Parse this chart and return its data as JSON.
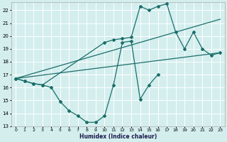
{
  "xlabel": "Humidex (Indice chaleur)",
  "xlim": [
    -0.5,
    23.5
  ],
  "ylim": [
    13,
    22.6
  ],
  "yticks": [
    13,
    14,
    15,
    16,
    17,
    18,
    19,
    20,
    21,
    22
  ],
  "xticks": [
    0,
    1,
    2,
    3,
    4,
    5,
    6,
    7,
    8,
    9,
    10,
    11,
    12,
    13,
    14,
    15,
    16,
    17,
    18,
    19,
    20,
    21,
    22,
    23
  ],
  "bg_color": "#d4eeee",
  "line_color": "#1a6e6a",
  "grid_color": "#ffffff",
  "curve1_x": [
    0,
    1,
    2,
    3,
    4,
    5,
    6,
    7,
    8,
    9,
    10,
    11,
    12,
    13,
    14,
    15,
    16
  ],
  "curve1_y": [
    16.7,
    16.5,
    16.3,
    16.2,
    16.0,
    14.9,
    14.2,
    13.8,
    13.3,
    13.3,
    13.8,
    16.2,
    19.5,
    19.6,
    15.1,
    16.2,
    17.0
  ],
  "curve2_x": [
    0,
    1,
    2,
    3,
    10,
    11,
    12,
    13,
    14,
    15,
    16,
    17,
    18,
    19,
    20,
    21,
    22,
    23
  ],
  "curve2_y": [
    16.7,
    16.5,
    16.3,
    16.2,
    19.5,
    19.7,
    19.8,
    19.9,
    22.3,
    22.0,
    22.3,
    22.5,
    20.3,
    19.0,
    20.3,
    19.0,
    18.5,
    18.7
  ],
  "line3_x": [
    0,
    23
  ],
  "line3_y": [
    16.7,
    18.7
  ],
  "line4_x": [
    0,
    23
  ],
  "line4_y": [
    16.7,
    21.3
  ]
}
